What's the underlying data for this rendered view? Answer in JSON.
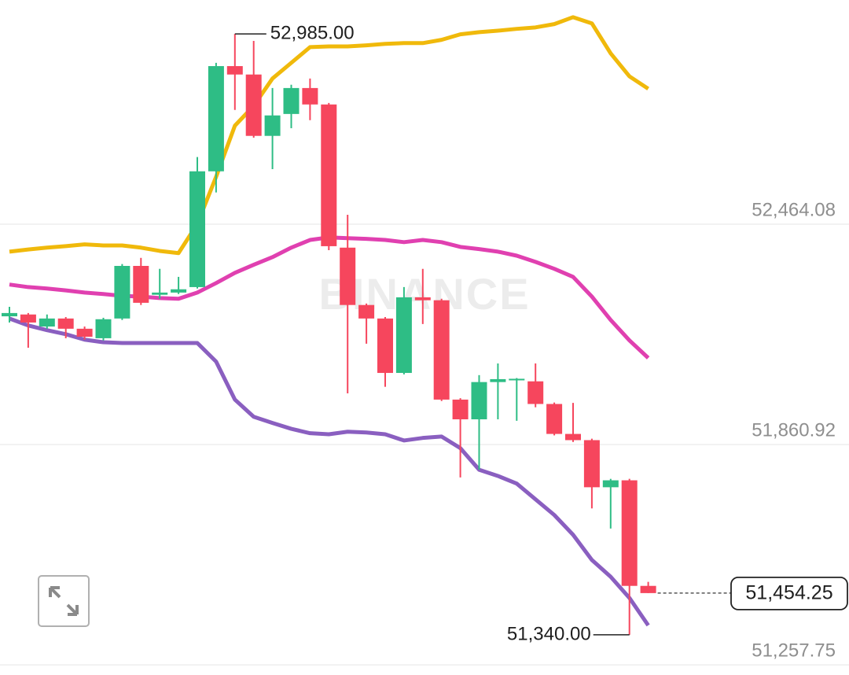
{
  "chart_data": {
    "type": "candlestick",
    "watermark": "BINANCE",
    "up_color": "#2ebd85",
    "down_color": "#f6465d",
    "open": [
      52212,
      52217,
      52184,
      52206,
      52178,
      52152,
      52206,
      52350,
      52271,
      52277,
      52292,
      52609,
      52897,
      52874,
      52706,
      52766,
      52837,
      52792,
      52400,
      52243,
      52206,
      52057,
      52264,
      52256,
      51984,
      51930,
      52032,
      52037,
      52034,
      51972,
      51890,
      51873,
      51744,
      51763,
      51474
    ],
    "high": [
      52238,
      52221,
      52217,
      52210,
      52184,
      52208,
      52355,
      52372,
      52342,
      52320,
      52648,
      52906,
      52985,
      52966,
      52837,
      52846,
      52863,
      52796,
      52490,
      52247,
      52210,
      52292,
      52342,
      52260,
      51988,
      52051,
      52083,
      52043,
      52083,
      51976,
      51975,
      51877,
      51767,
      51767,
      51485
    ],
    "low": [
      52195,
      52126,
      52178,
      52152,
      52148,
      52146,
      52202,
      52243,
      52260,
      52273,
      52288,
      52551,
      52777,
      52701,
      52615,
      52727,
      52749,
      52393,
      52001,
      52137,
      52019,
      52053,
      52191,
      51980,
      51771,
      51792,
      51930,
      51926,
      51963,
      51886,
      51868,
      51686,
      51631,
      51340,
      51454.25
    ],
    "close": [
      52221,
      52195,
      52206,
      52178,
      52156,
      52204,
      52350,
      52249,
      52277,
      52286,
      52609,
      52897,
      52874,
      52706,
      52762,
      52837,
      52792,
      52404,
      52243,
      52206,
      52057,
      52264,
      52256,
      51984,
      51930,
      52032,
      52040,
      52041,
      51972,
      51890,
      51873,
      51744,
      51763,
      51474,
      51454.25
    ],
    "series": [
      {
        "color": "#f0b90b",
        "values": [
          52389,
          52395,
          52400,
          52404,
          52409,
          52406,
          52406,
          52400,
          52391,
          52385,
          52465,
          52594,
          52734,
          52788,
          52863,
          52906,
          52949,
          52951,
          52951,
          52954,
          52958,
          52960,
          52960,
          52969,
          52984,
          52990,
          52994,
          52999,
          53003,
          53012,
          53031,
          53014,
          52932,
          52869,
          52835
        ]
      },
      {
        "color": "#e040b0",
        "values": [
          52299,
          52292,
          52288,
          52283,
          52277,
          52273,
          52268,
          52266,
          52262,
          52260,
          52277,
          52303,
          52331,
          52353,
          52374,
          52400,
          52421,
          52428,
          52426,
          52424,
          52421,
          52415,
          52421,
          52415,
          52402,
          52396,
          52389,
          52378,
          52361,
          52342,
          52320,
          52266,
          52202,
          52146,
          52098
        ]
      },
      {
        "color": "#8a5fc0",
        "values": [
          52206,
          52187,
          52174,
          52163,
          52148,
          52141,
          52139,
          52139,
          52139,
          52139,
          52139,
          52088,
          51984,
          51937,
          51920,
          51904,
          51892,
          51889,
          51896,
          51894,
          51889,
          51872,
          51879,
          51883,
          51851,
          51792,
          51775,
          51754,
          51711,
          51668,
          51614,
          51545,
          51499,
          51441,
          51366
        ]
      }
    ],
    "high_label": {
      "value": 52985,
      "label": "52,985.00"
    },
    "low_label": {
      "value": 51340,
      "label": "51,340.00"
    },
    "last_price": {
      "value": 51454.25,
      "label": "51,454.25"
    },
    "ylim": [
      51230,
      53078
    ],
    "yticks": [
      {
        "value": 52464.08,
        "label": "52,464.08"
      },
      {
        "value": 51860.92,
        "label": "51,860.92"
      },
      {
        "value": 51257.75,
        "label": "51,257.75"
      }
    ],
    "grid": true
  }
}
